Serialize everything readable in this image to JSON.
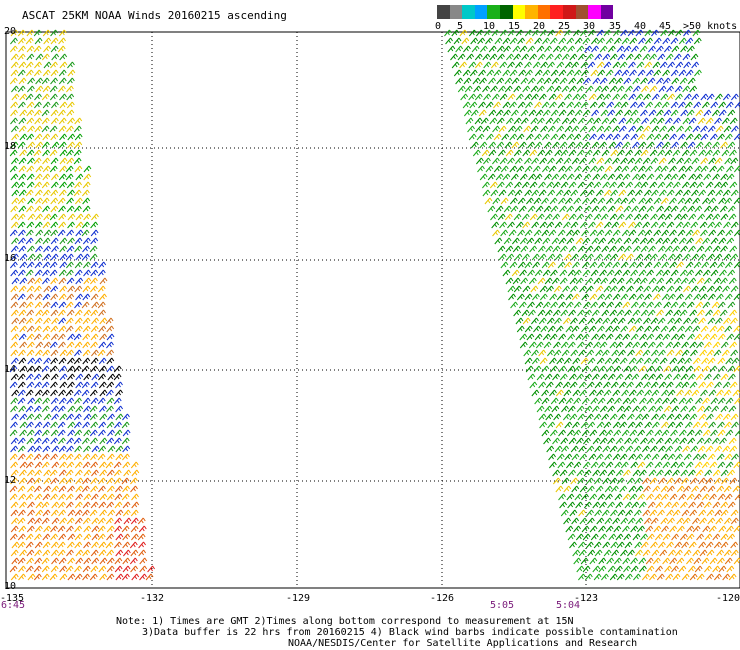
{
  "title": "ASCAT 25KM NOAA Winds 20160215 ascending",
  "legend": {
    "colors": [
      "#444444",
      "#888888",
      "#00c8c8",
      "#00a0ff",
      "#1ab01a",
      "#006400",
      "#ffff00",
      "#ffb400",
      "#ff7000",
      "#ff2020",
      "#d01818",
      "#a05030",
      "#ff00ff",
      "#7000a0"
    ],
    "labels": [
      "0",
      "5",
      "10",
      "15",
      "20",
      "25",
      "30",
      "35",
      "40",
      "45",
      ">50 knots"
    ]
  },
  "axes": {
    "lat_ticks": [
      "20",
      "18",
      "16",
      "14",
      "12",
      "10"
    ],
    "lon_ticks": [
      "-135",
      "-132",
      "-129",
      "-126",
      "-123",
      "-120"
    ]
  },
  "pass_times": [
    "6:45",
    "5:05",
    "5:04"
  ],
  "notes": [
    "Note: 1) Times are GMT 2)Times along bottom correspond to measurement at 15N",
    "3)Data buffer is 22 hrs from 20160215 4) Black wind barbs indicate possible contamination",
    "NOAA/NESDIS/Center for Satellite Applications and Research"
  ]
}
